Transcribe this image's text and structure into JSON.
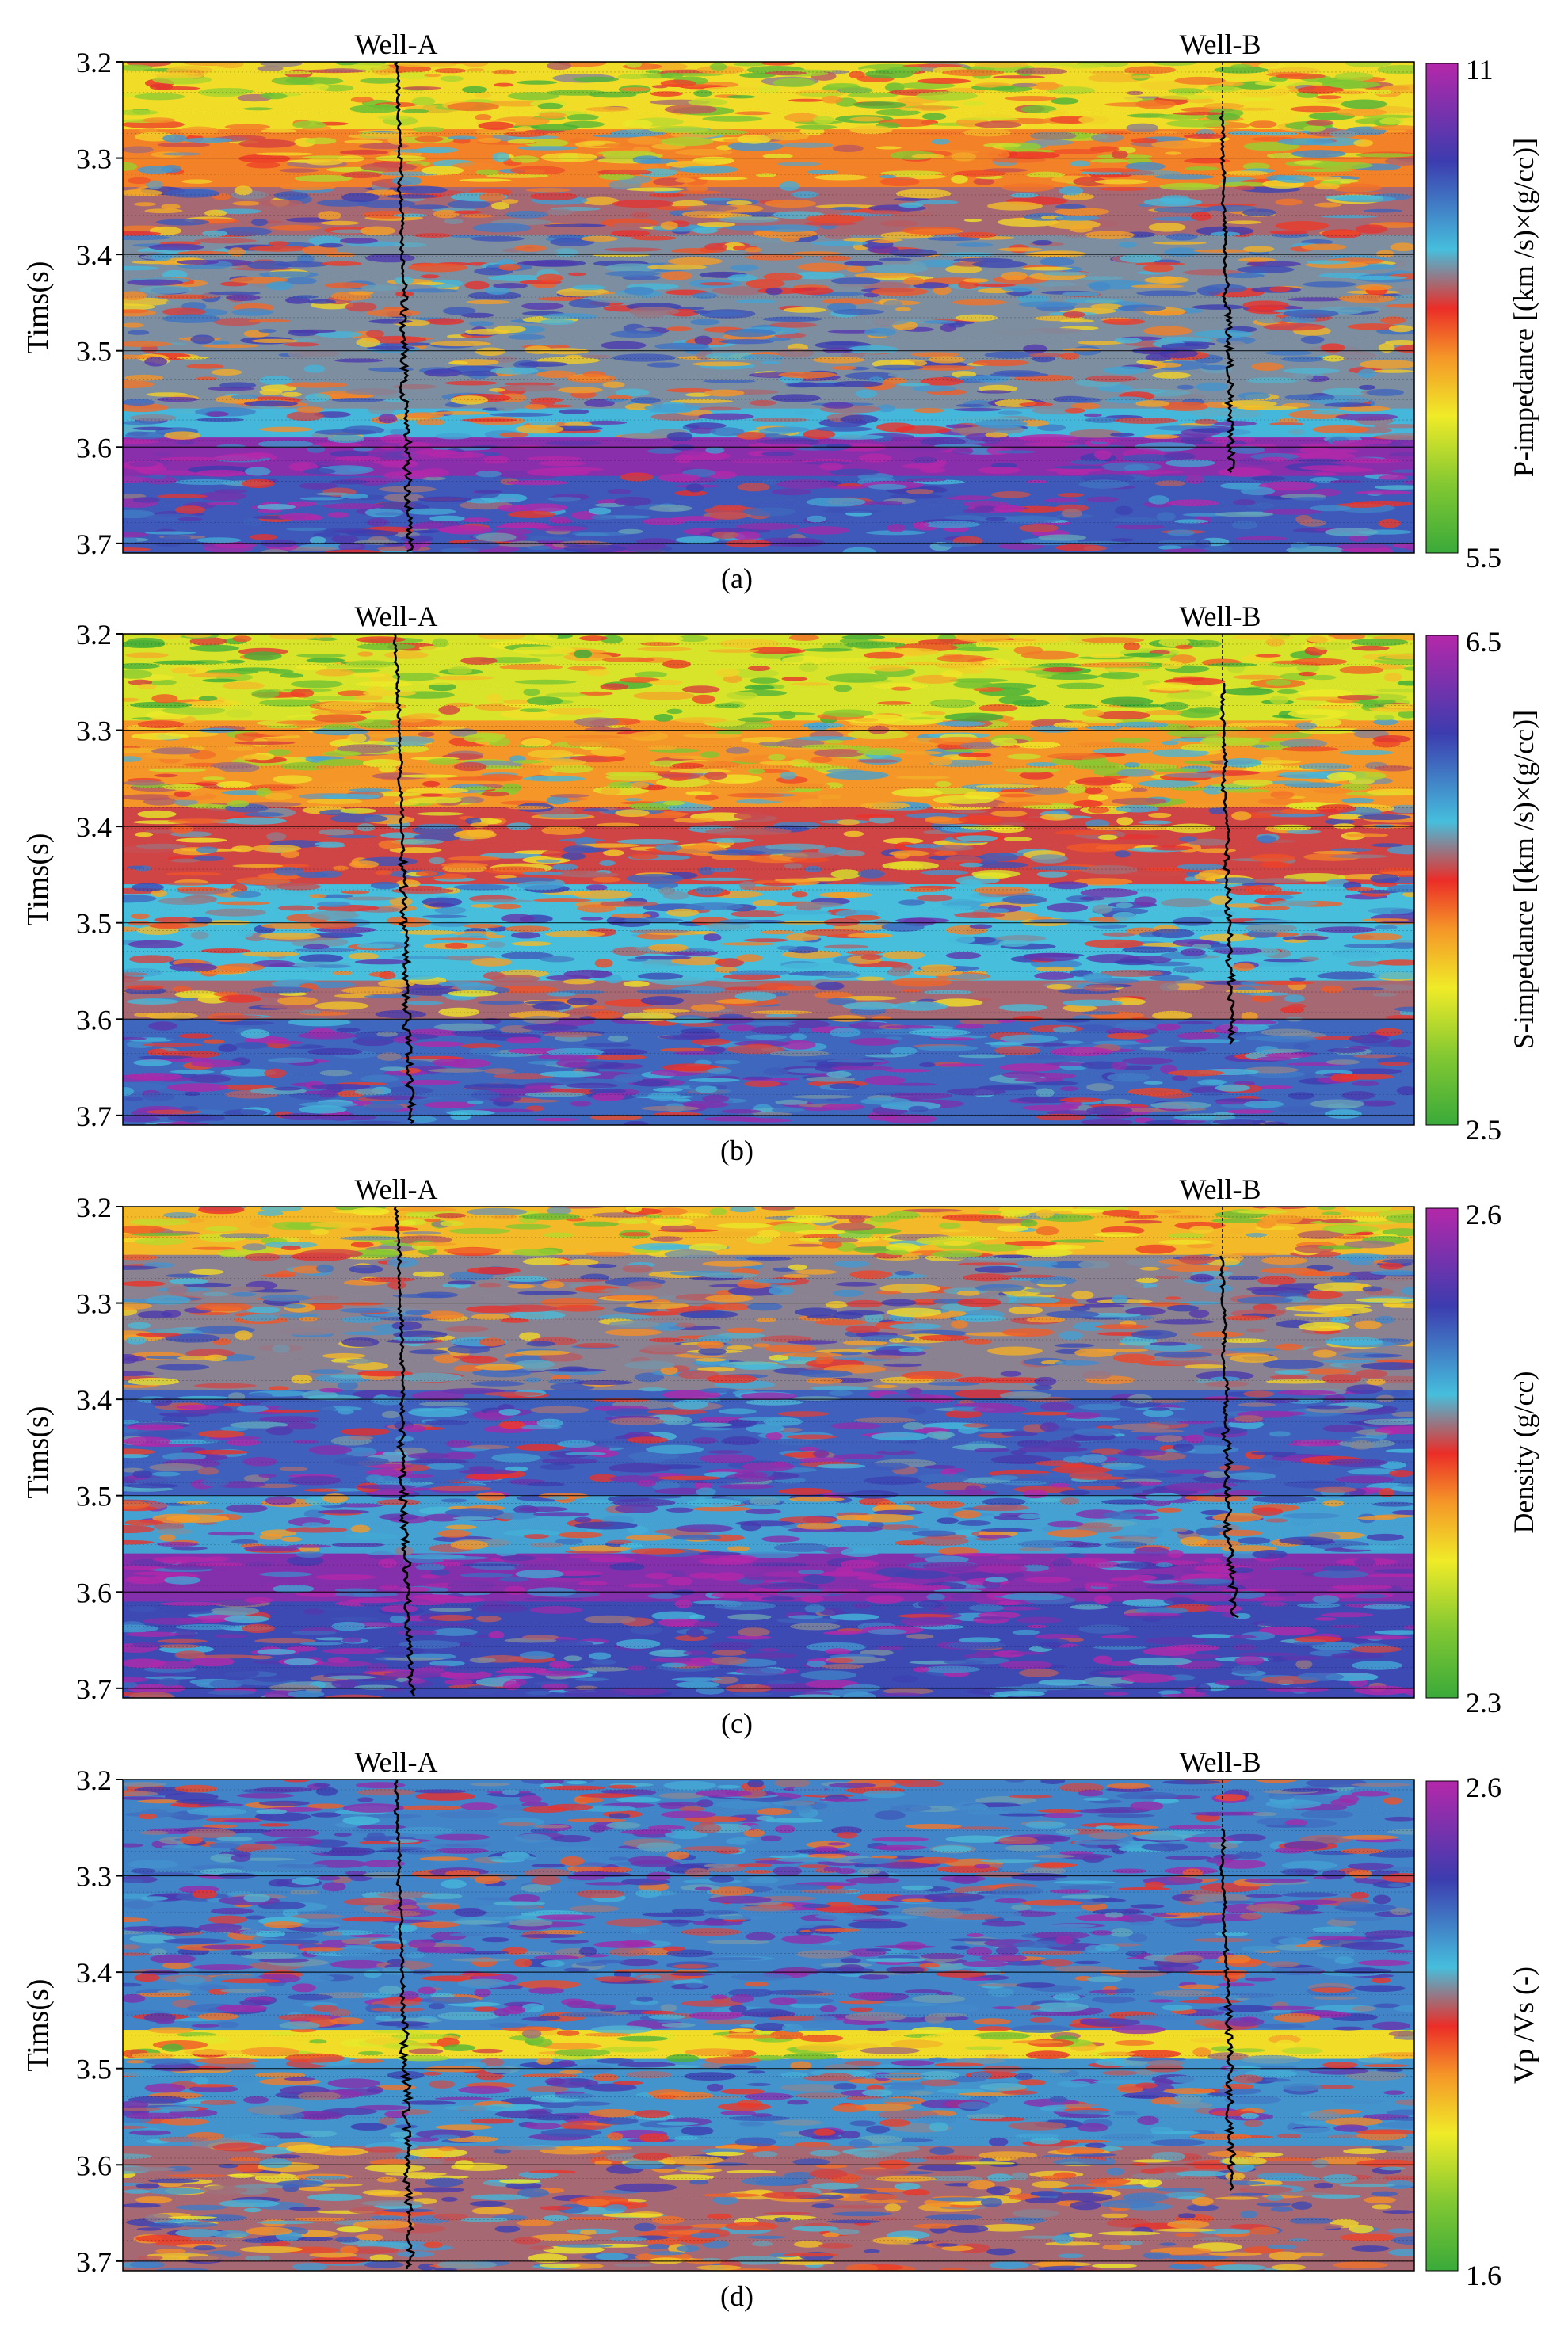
{
  "chart_data": [
    {
      "type": "heatmap",
      "panel_label": "(a)",
      "ylabel": "Tims(s)",
      "ylim": [
        3.2,
        3.71
      ],
      "yticks": [
        "3.2",
        "3.3",
        "3.4",
        "3.5",
        "3.6",
        "3.7"
      ],
      "wells": [
        "Well-A",
        "Well-B"
      ],
      "colorbar": {
        "label": "P-impedance [(km /s)×(g/cc)]",
        "max_label": "11",
        "min_label": "5.5",
        "min": 5.5,
        "max": 11
      },
      "layers": [
        {
          "t0": 3.2,
          "t1": 3.27,
          "level": 0.3
        },
        {
          "t0": 3.27,
          "t1": 3.33,
          "level": 0.42
        },
        {
          "t0": 3.33,
          "t1": 3.38,
          "level": 0.55
        },
        {
          "t0": 3.38,
          "t1": 3.56,
          "level": 0.58
        },
        {
          "t0": 3.56,
          "t1": 3.59,
          "level": 0.63
        },
        {
          "t0": 3.59,
          "t1": 3.63,
          "level": 0.93
        },
        {
          "t0": 3.63,
          "t1": 3.71,
          "level": 0.76
        }
      ]
    },
    {
      "type": "heatmap",
      "panel_label": "(b)",
      "ylabel": "Tims(s)",
      "ylim": [
        3.2,
        3.71
      ],
      "yticks": [
        "3.2",
        "3.3",
        "3.4",
        "3.5",
        "3.6",
        "3.7"
      ],
      "wells": [
        "Well-A",
        "Well-B"
      ],
      "colorbar": {
        "label": "S-impedance [(km /s)×(g/cc)]",
        "max_label": "6.5",
        "min_label": "2.5",
        "min": 2.5,
        "max": 6.5
      },
      "layers": [
        {
          "t0": 3.2,
          "t1": 3.29,
          "level": 0.25
        },
        {
          "t0": 3.29,
          "t1": 3.38,
          "level": 0.4
        },
        {
          "t0": 3.38,
          "t1": 3.46,
          "level": 0.52
        },
        {
          "t0": 3.46,
          "t1": 3.56,
          "level": 0.62
        },
        {
          "t0": 3.56,
          "t1": 3.6,
          "level": 0.55
        },
        {
          "t0": 3.6,
          "t1": 3.71,
          "level": 0.74
        }
      ]
    },
    {
      "type": "heatmap",
      "panel_label": "(c)",
      "ylabel": "Tims(s)",
      "ylim": [
        3.2,
        3.71
      ],
      "yticks": [
        "3.2",
        "3.3",
        "3.4",
        "3.5",
        "3.6",
        "3.7"
      ],
      "wells": [
        "Well-A",
        "Well-B"
      ],
      "colorbar": {
        "label": "Density (g/cc)",
        "max_label": "2.6",
        "min_label": "2.3",
        "min": 2.3,
        "max": 2.6
      },
      "layers": [
        {
          "t0": 3.2,
          "t1": 3.25,
          "level": 0.35
        },
        {
          "t0": 3.25,
          "t1": 3.39,
          "level": 0.57
        },
        {
          "t0": 3.39,
          "t1": 3.5,
          "level": 0.75
        },
        {
          "t0": 3.5,
          "t1": 3.56,
          "level": 0.66
        },
        {
          "t0": 3.56,
          "t1": 3.61,
          "level": 0.92
        },
        {
          "t0": 3.61,
          "t1": 3.71,
          "level": 0.78
        }
      ]
    },
    {
      "type": "heatmap",
      "panel_label": "(d)",
      "ylabel": "Tims(s)",
      "ylim": [
        3.2,
        3.71
      ],
      "yticks": [
        "3.2",
        "3.3",
        "3.4",
        "3.5",
        "3.6",
        "3.7"
      ],
      "wells": [
        "Well-A",
        "Well-B"
      ],
      "colorbar": {
        "label": "Vp /Vs (-)",
        "max_label": "2.6",
        "min_label": "1.6",
        "min": 1.6,
        "max": 2.6
      },
      "layers": [
        {
          "t0": 3.2,
          "t1": 3.46,
          "level": 0.7
        },
        {
          "t0": 3.46,
          "t1": 3.49,
          "level": 0.3
        },
        {
          "t0": 3.49,
          "t1": 3.58,
          "level": 0.68
        },
        {
          "t0": 3.58,
          "t1": 3.71,
          "level": 0.55
        }
      ]
    }
  ]
}
